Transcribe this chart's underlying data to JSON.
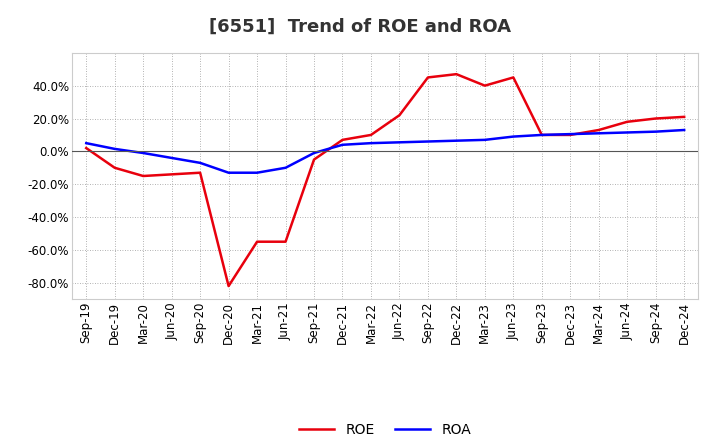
{
  "title": "[6551]  Trend of ROE and ROA",
  "x_labels": [
    "Sep-19",
    "Dec-19",
    "Mar-20",
    "Jun-20",
    "Sep-20",
    "Dec-20",
    "Mar-21",
    "Jun-21",
    "Sep-21",
    "Dec-21",
    "Mar-22",
    "Jun-22",
    "Sep-22",
    "Dec-22",
    "Mar-23",
    "Jun-23",
    "Sep-23",
    "Dec-23",
    "Mar-24",
    "Jun-24",
    "Sep-24",
    "Dec-24"
  ],
  "roe": [
    2.0,
    -10.0,
    -15.0,
    -14.0,
    -13.0,
    -82.0,
    -55.0,
    -55.0,
    -5.0,
    7.0,
    10.0,
    22.0,
    45.0,
    47.0,
    40.0,
    45.0,
    10.0,
    10.0,
    13.0,
    18.0,
    20.0,
    21.0
  ],
  "roa": [
    5.0,
    1.5,
    -1.0,
    -4.0,
    -7.0,
    -13.0,
    -13.0,
    -10.0,
    -1.0,
    4.0,
    5.0,
    5.5,
    6.0,
    6.5,
    7.0,
    9.0,
    10.0,
    10.5,
    11.0,
    11.5,
    12.0,
    13.0
  ],
  "roe_color": "#e8000d",
  "roa_color": "#0000ff",
  "background_color": "#ffffff",
  "plot_bg_color": "#ffffff",
  "grid_color": "#999999",
  "ylim_min": -90,
  "ylim_max": 60,
  "yticks": [
    -80,
    -60,
    -40,
    -20,
    0,
    20,
    40
  ],
  "legend_roe": "ROE",
  "legend_roa": "ROA",
  "title_fontsize": 13,
  "tick_fontsize": 8.5,
  "legend_fontsize": 10,
  "line_width": 1.8
}
